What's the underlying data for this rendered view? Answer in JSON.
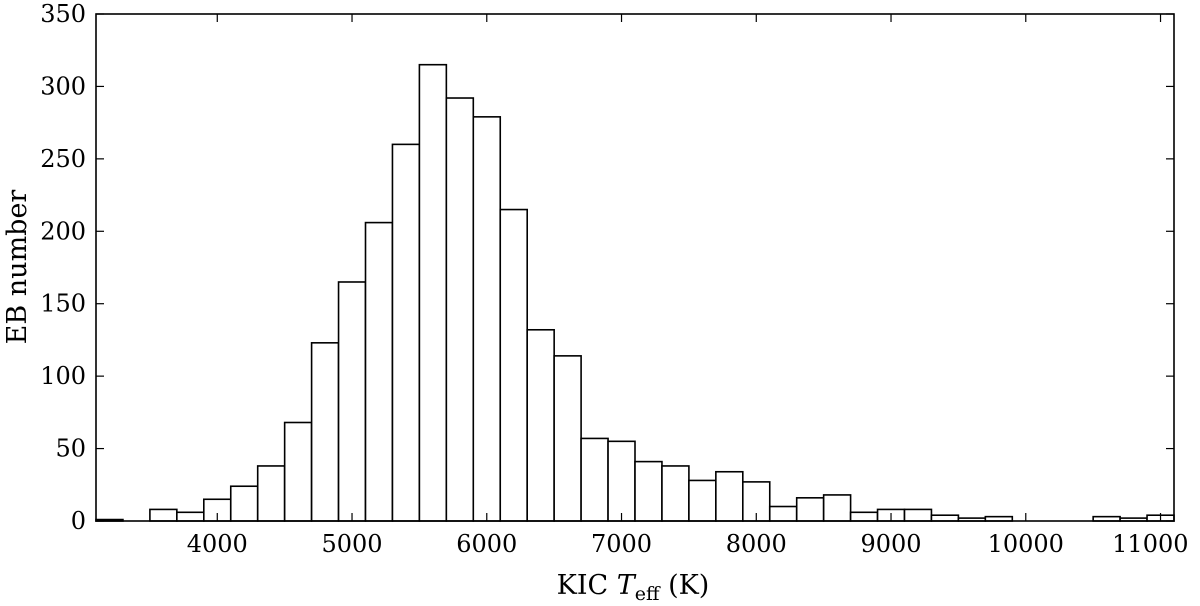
{
  "chart_data": {
    "type": "bar",
    "subtype": "histogram",
    "xlabel_parts": {
      "prefix": "KIC ",
      "symbol": "T",
      "subscript": "eff",
      "suffix": " (K)"
    },
    "ylabel": "EB number",
    "xlim": [
      3100,
      11100
    ],
    "ylim": [
      0,
      350
    ],
    "xticks": [
      4000,
      5000,
      6000,
      7000,
      8000,
      9000,
      10000,
      11000
    ],
    "yticks": [
      0,
      50,
      100,
      150,
      200,
      250,
      300,
      350
    ],
    "bin_width": 200,
    "bin_starts": [
      3100,
      3300,
      3500,
      3700,
      3900,
      4100,
      4300,
      4500,
      4700,
      4900,
      5100,
      5300,
      5500,
      5700,
      5900,
      6100,
      6300,
      6500,
      6700,
      6900,
      7100,
      7300,
      7500,
      7700,
      7900,
      8100,
      8300,
      8500,
      8700,
      8900,
      9100,
      9300,
      9500,
      9700,
      9900,
      10100,
      10300,
      10500,
      10700,
      10900
    ],
    "counts": [
      1,
      0,
      8,
      6,
      15,
      24,
      38,
      68,
      123,
      165,
      206,
      260,
      315,
      292,
      279,
      215,
      132,
      114,
      57,
      55,
      41,
      38,
      28,
      34,
      27,
      10,
      16,
      18,
      6,
      8,
      8,
      4,
      2,
      3,
      0,
      0,
      0,
      3,
      2,
      4
    ],
    "grid": false,
    "legend": "none"
  }
}
